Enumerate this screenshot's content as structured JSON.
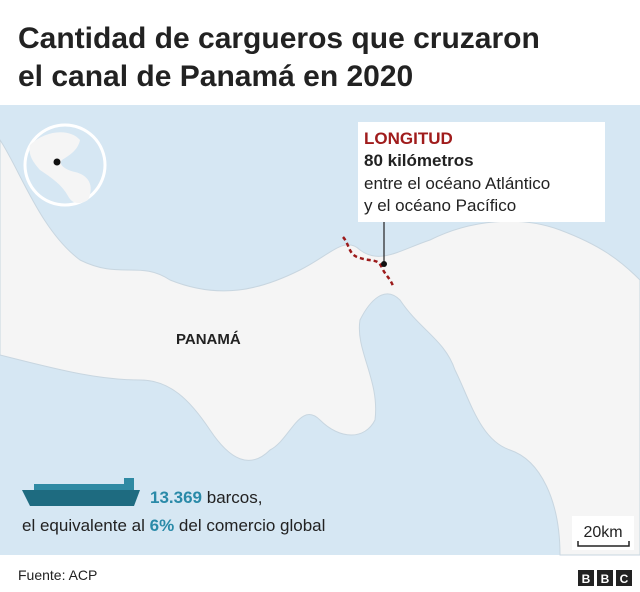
{
  "header": {
    "title_lines": [
      "Cantidad de cargueros que cruzaron",
      "el canal de Panamá en 2020"
    ]
  },
  "callout": {
    "heading": "LONGITUD",
    "length": "80 kilómetros",
    "detail_lines": [
      "entre el océano Atlántico",
      "y el océano Pacífico"
    ]
  },
  "map": {
    "country_label": "PANAMÁ",
    "scale_label": "20km"
  },
  "stats": {
    "ships_number": "13.369",
    "ships_unit": "barcos,",
    "share_prefix": "el equivalente al",
    "share_value": "6%",
    "share_suffix": "del comercio global"
  },
  "footer": {
    "source": "Fuente: ACP",
    "logo": [
      "B",
      "B",
      "C"
    ]
  }
}
